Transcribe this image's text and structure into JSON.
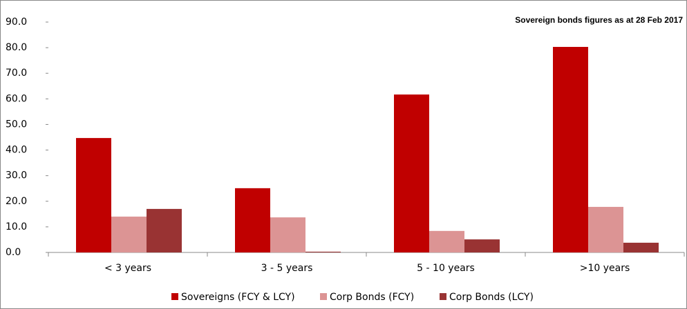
{
  "chart_data": {
    "type": "bar",
    "title": "Sovereign bonds figures as at 28 Feb 2017",
    "categories": [
      "< 3 years",
      "3 - 5 years",
      "5 - 10 years",
      ">10 years"
    ],
    "series": [
      {
        "name": "Sovereigns (FCY & LCY)",
        "color": "#c00000",
        "values": [
          44.7,
          25.1,
          61.7,
          80.3
        ]
      },
      {
        "name": "Corp Bonds (FCY)",
        "color": "#dc9494",
        "values": [
          14.0,
          13.7,
          8.4,
          17.8
        ]
      },
      {
        "name": "Corp Bonds (LCY)",
        "color": "#993333",
        "values": [
          17.0,
          0.3,
          5.1,
          3.8
        ]
      }
    ],
    "ylim": [
      0,
      90
    ],
    "yticks": [
      {
        "value": 0,
        "label": "0.0"
      },
      {
        "value": 10,
        "label": "10.0"
      },
      {
        "value": 20,
        "label": "20.0"
      },
      {
        "value": 30,
        "label": "30.0"
      },
      {
        "value": 40,
        "label": "40.0"
      },
      {
        "value": 50,
        "label": "50.0"
      },
      {
        "value": 60,
        "label": "60.0"
      },
      {
        "value": 70,
        "label": "70.0"
      },
      {
        "value": 80,
        "label": "80.0"
      },
      {
        "value": 90,
        "label": "90.0"
      }
    ],
    "legend": "bottom"
  }
}
